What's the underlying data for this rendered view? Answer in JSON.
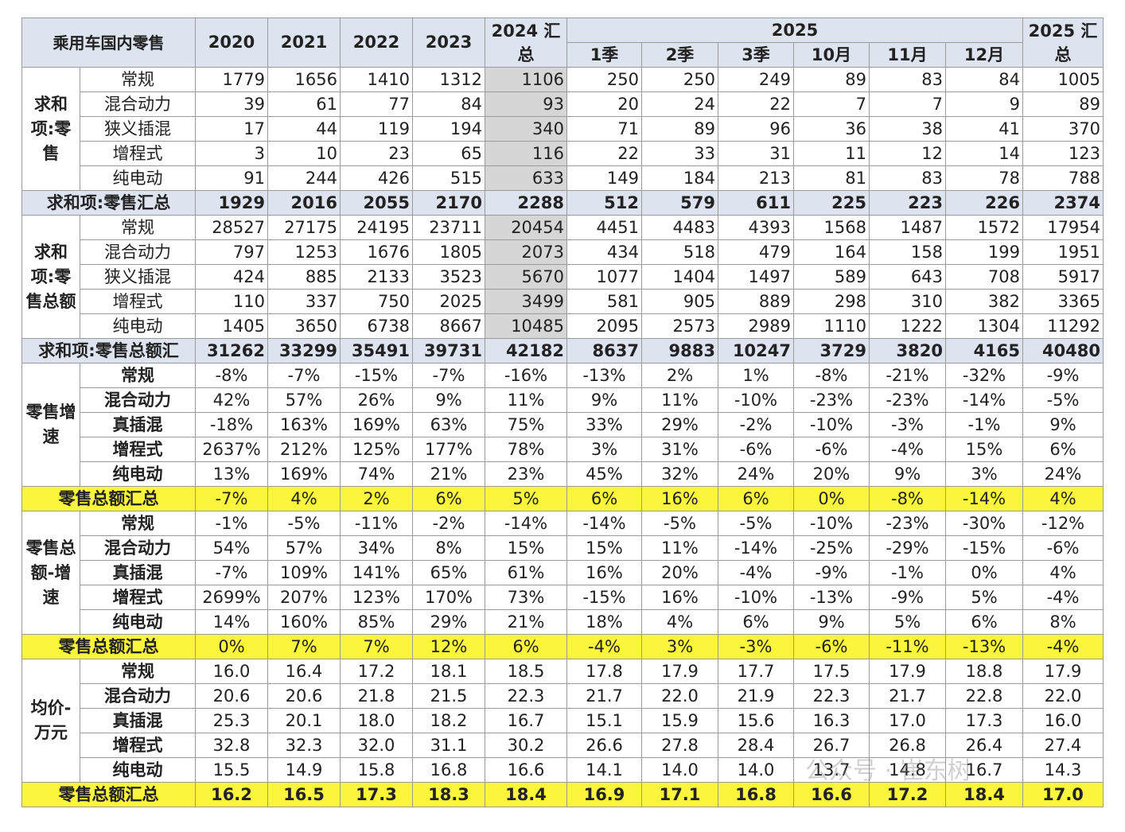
{
  "header": {
    "corner": "乘用车国内零售",
    "years": [
      "2020",
      "2021",
      "2022",
      "2023"
    ],
    "total_2024": "2024 汇总",
    "group_2025": "2025",
    "periods": [
      "1季",
      "2季",
      "3季",
      "10月",
      "11月",
      "12月"
    ],
    "total_2025": "2025 汇总"
  },
  "sections": [
    {
      "group": "求和项:零售",
      "rows": [
        {
          "name": "常规",
          "values": [
            "1779",
            "1656",
            "1410",
            "1312",
            "1106",
            "250",
            "250",
            "249",
            "89",
            "83",
            "84",
            "1005"
          ]
        },
        {
          "name": "混合动力",
          "values": [
            "39",
            "61",
            "77",
            "84",
            "93",
            "20",
            "24",
            "22",
            "7",
            "7",
            "9",
            "89"
          ]
        },
        {
          "name": "狭义插混",
          "values": [
            "17",
            "44",
            "119",
            "194",
            "340",
            "71",
            "89",
            "96",
            "36",
            "38",
            "41",
            "370"
          ]
        },
        {
          "name": "增程式",
          "values": [
            "3",
            "10",
            "23",
            "65",
            "116",
            "22",
            "33",
            "31",
            "11",
            "12",
            "14",
            "123"
          ]
        },
        {
          "name": "纯电动",
          "values": [
            "91",
            "244",
            "426",
            "515",
            "633",
            "149",
            "184",
            "213",
            "81",
            "83",
            "78",
            "788"
          ]
        }
      ],
      "total": {
        "name": "求和项:零售汇总",
        "values": [
          "1929",
          "2016",
          "2055",
          "2170",
          "2288",
          "512",
          "579",
          "611",
          "225",
          "223",
          "226",
          "2374"
        ]
      }
    },
    {
      "group": "求和项:零售总额",
      "rows": [
        {
          "name": "常规",
          "values": [
            "28527",
            "27175",
            "24195",
            "23711",
            "20454",
            "4451",
            "4483",
            "4393",
            "1568",
            "1487",
            "1572",
            "17954"
          ]
        },
        {
          "name": "混合动力",
          "values": [
            "797",
            "1253",
            "1676",
            "1805",
            "2073",
            "434",
            "518",
            "479",
            "164",
            "158",
            "199",
            "1951"
          ]
        },
        {
          "name": "狭义插混",
          "values": [
            "424",
            "885",
            "2133",
            "3523",
            "5670",
            "1077",
            "1404",
            "1497",
            "589",
            "643",
            "708",
            "5917"
          ]
        },
        {
          "name": "增程式",
          "values": [
            "110",
            "337",
            "750",
            "2025",
            "3499",
            "581",
            "905",
            "889",
            "298",
            "310",
            "382",
            "3365"
          ]
        },
        {
          "name": "纯电动",
          "values": [
            "1405",
            "3650",
            "6738",
            "8667",
            "10485",
            "2095",
            "2573",
            "2989",
            "1110",
            "1222",
            "1304",
            "11292"
          ]
        }
      ],
      "total": {
        "name": "求和项:零售总额汇",
        "values": [
          "31262",
          "33299",
          "35491",
          "39731",
          "42182",
          "8637",
          "9883",
          "10247",
          "3729",
          "3820",
          "4165",
          "40480"
        ]
      }
    },
    {
      "group": "零售增速",
      "rows": [
        {
          "name": "常规",
          "values": [
            "-8%",
            "-7%",
            "-15%",
            "-7%",
            "-16%",
            "-13%",
            "2%",
            "1%",
            "-8%",
            "-21%",
            "-32%",
            "-9%"
          ]
        },
        {
          "name": "混合动力",
          "values": [
            "42%",
            "57%",
            "26%",
            "9%",
            "11%",
            "9%",
            "11%",
            "-10%",
            "-23%",
            "-23%",
            "-14%",
            "-5%"
          ]
        },
        {
          "name": "真插混",
          "values": [
            "-18%",
            "163%",
            "169%",
            "63%",
            "75%",
            "33%",
            "29%",
            "-2%",
            "-10%",
            "-3%",
            "-1%",
            "9%"
          ]
        },
        {
          "name": "增程式",
          "values": [
            "2637%",
            "212%",
            "125%",
            "177%",
            "78%",
            "3%",
            "31%",
            "-6%",
            "-6%",
            "-4%",
            "15%",
            "6%"
          ]
        },
        {
          "name": "纯电动",
          "values": [
            "13%",
            "169%",
            "74%",
            "21%",
            "23%",
            "45%",
            "32%",
            "24%",
            "20%",
            "9%",
            "3%",
            "24%"
          ]
        }
      ],
      "total": {
        "name": "零售总额汇总",
        "values": [
          "-7%",
          "4%",
          "2%",
          "6%",
          "5%",
          "6%",
          "16%",
          "6%",
          "0%",
          "-8%",
          "-14%",
          "4%"
        ]
      }
    },
    {
      "group": "零售总额-增速",
      "rows": [
        {
          "name": "常规",
          "values": [
            "-1%",
            "-5%",
            "-11%",
            "-2%",
            "-14%",
            "-14%",
            "-5%",
            "-5%",
            "-10%",
            "-23%",
            "-30%",
            "-12%"
          ]
        },
        {
          "name": "混合动力",
          "values": [
            "54%",
            "57%",
            "34%",
            "8%",
            "15%",
            "15%",
            "11%",
            "-14%",
            "-25%",
            "-29%",
            "-15%",
            "-6%"
          ]
        },
        {
          "name": "真插混",
          "values": [
            "-7%",
            "109%",
            "141%",
            "65%",
            "61%",
            "16%",
            "20%",
            "-4%",
            "-9%",
            "-1%",
            "0%",
            "4%"
          ]
        },
        {
          "name": "增程式",
          "values": [
            "2699%",
            "207%",
            "123%",
            "170%",
            "73%",
            "-15%",
            "16%",
            "-10%",
            "-13%",
            "-9%",
            "5%",
            "-4%"
          ]
        },
        {
          "name": "纯电动",
          "values": [
            "14%",
            "160%",
            "85%",
            "29%",
            "21%",
            "18%",
            "4%",
            "6%",
            "9%",
            "5%",
            "6%",
            "8%"
          ]
        }
      ],
      "total": {
        "name": "零售总额汇总",
        "values": [
          "0%",
          "7%",
          "7%",
          "12%",
          "6%",
          "-4%",
          "3%",
          "-3%",
          "-6%",
          "-11%",
          "-13%",
          "-4%"
        ]
      }
    },
    {
      "group": "均价-万元",
      "rows": [
        {
          "name": "常规",
          "values": [
            "16.0",
            "16.4",
            "17.2",
            "18.1",
            "18.5",
            "17.8",
            "17.9",
            "17.7",
            "17.5",
            "17.9",
            "18.8",
            "17.9"
          ]
        },
        {
          "name": "混合动力",
          "values": [
            "20.6",
            "20.6",
            "21.8",
            "21.5",
            "22.3",
            "21.7",
            "22.0",
            "21.9",
            "22.3",
            "21.7",
            "22.8",
            "22.0"
          ]
        },
        {
          "name": "真插混",
          "values": [
            "25.3",
            "20.1",
            "18.0",
            "18.2",
            "16.7",
            "15.1",
            "15.9",
            "15.6",
            "16.3",
            "17.0",
            "17.3",
            "16.0"
          ]
        },
        {
          "name": "增程式",
          "values": [
            "32.8",
            "32.3",
            "32.0",
            "31.1",
            "30.2",
            "26.6",
            "27.8",
            "28.4",
            "26.7",
            "26.8",
            "26.4",
            "27.4"
          ]
        },
        {
          "name": "纯电动",
          "values": [
            "15.5",
            "14.9",
            "15.8",
            "16.8",
            "16.6",
            "14.1",
            "14.0",
            "14.0",
            "13.7",
            "14.8",
            "16.7",
            "14.3"
          ]
        }
      ],
      "total": {
        "name": "零售总额汇总",
        "values": [
          "16.2",
          "16.5",
          "17.3",
          "18.3",
          "18.4",
          "16.9",
          "17.1",
          "16.8",
          "16.6",
          "17.2",
          "18.4",
          "17.0"
        ]
      }
    }
  ],
  "watermark": "公众号 · 崔东树"
}
